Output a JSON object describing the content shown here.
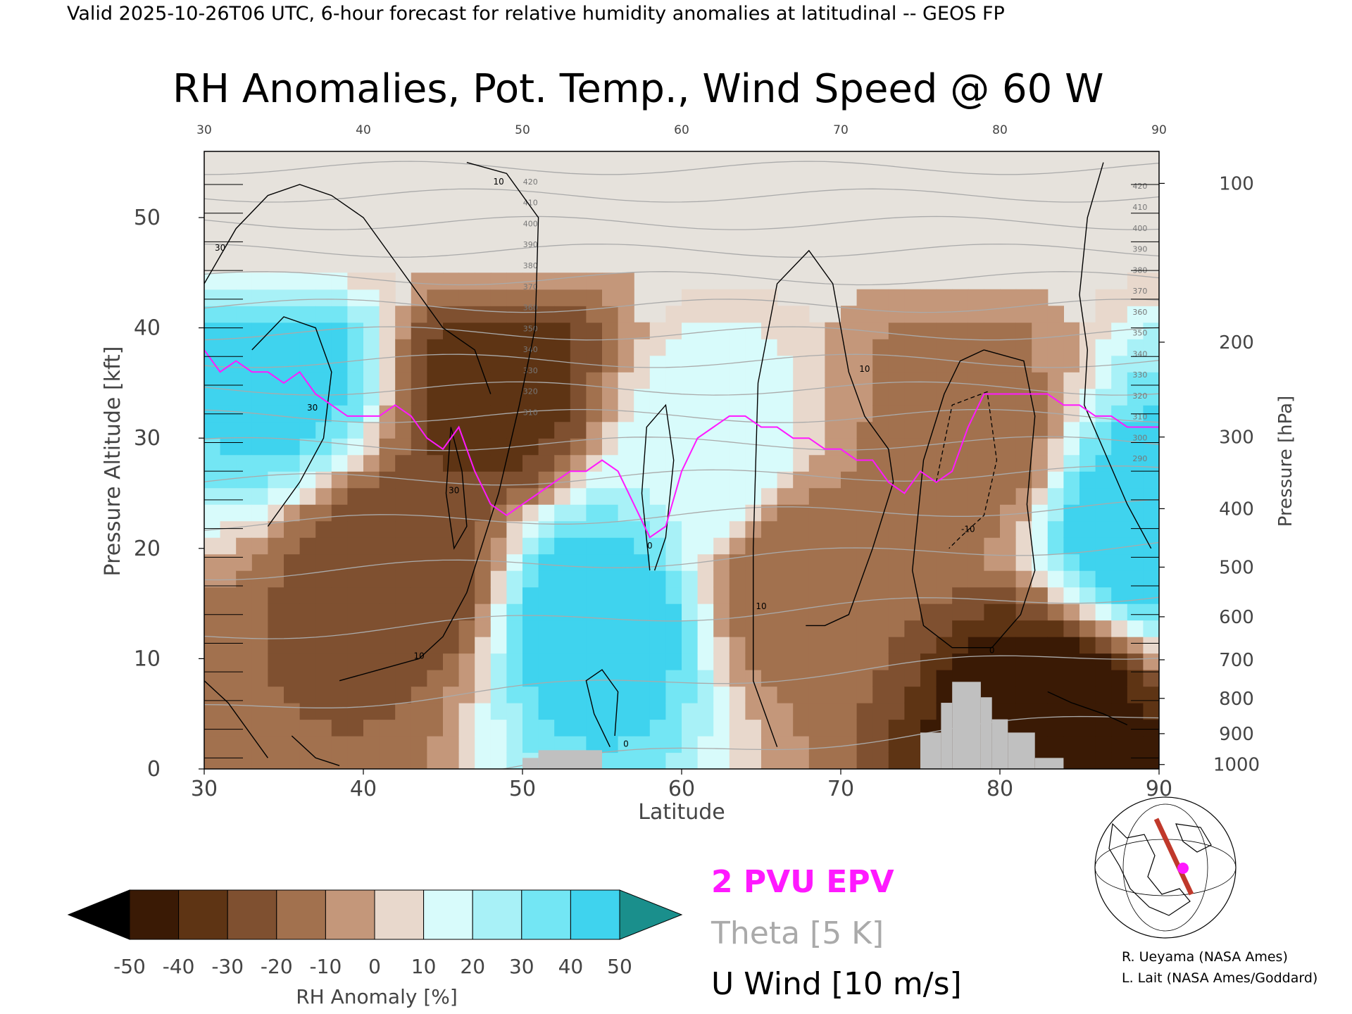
{
  "header": {
    "valid_line": "Valid 2025-10-26T06 UTC, 6-hour forecast for relative humidity anomalies at latitudinal -- GEOS FP",
    "title": "RH Anomalies, Pot. Temp., Wind Speed @ 60 W"
  },
  "chart_data": {
    "type": "heatmap",
    "title": "RH Anomalies, Pot. Temp., Wind Speed @ 60 W",
    "xlabel": "Latitude",
    "ylabel_left": "Pressure Altitude [kft]",
    "ylabel_right": "Pressure [hPa]",
    "xlim": [
      30,
      90
    ],
    "ylim": [
      0,
      56
    ],
    "x_ticks_top": [
      "30",
      "40",
      "50",
      "60",
      "70",
      "80",
      "90"
    ],
    "x_ticks_bottom": [
      "30",
      "40",
      "50",
      "60",
      "70",
      "80",
      "90"
    ],
    "y_ticks_left": [
      "0",
      "10",
      "20",
      "30",
      "40",
      "50"
    ],
    "pressure_ticks": [
      {
        "label": "100",
        "kft": 53.1
      },
      {
        "label": "200",
        "kft": 38.7
      },
      {
        "label": "300",
        "kft": 30.1
      },
      {
        "label": "400",
        "kft": 23.6
      },
      {
        "label": "500",
        "kft": 18.3
      },
      {
        "label": "600",
        "kft": 13.8
      },
      {
        "label": "700",
        "kft": 9.9
      },
      {
        "label": "800",
        "kft": 6.4
      },
      {
        "label": "900",
        "kft": 3.2
      },
      {
        "label": "1000",
        "kft": 0.4
      }
    ],
    "theta_labels": [
      "420",
      "410",
      "400",
      "390",
      "380",
      "370",
      "360",
      "350",
      "340",
      "330",
      "320",
      "310",
      "300",
      "290"
    ],
    "wind_labels": [
      "10",
      "30",
      "0",
      "-10"
    ],
    "background_fields": [
      {
        "lat": 30,
        "kft": 0,
        "rh": -20
      },
      {
        "lat": 35,
        "kft": 36,
        "rh": 45
      },
      {
        "lat": 42,
        "kft": 18,
        "rh": -30
      },
      {
        "lat": 48,
        "kft": 34,
        "rh": -35
      },
      {
        "lat": 55,
        "kft": 14,
        "rh": 50
      },
      {
        "lat": 62,
        "kft": 27,
        "rh": 20
      },
      {
        "lat": 67,
        "kft": 18,
        "rh": -20
      },
      {
        "lat": 78,
        "kft": 30,
        "rh": -15
      },
      {
        "lat": 83,
        "kft": 5,
        "rh": -50
      },
      {
        "lat": 89,
        "kft": 22,
        "rh": 50
      }
    ],
    "epv_2pvu_line": {
      "lat": [
        30,
        31,
        32,
        33,
        34,
        35,
        36,
        37,
        38,
        39,
        40,
        41,
        42,
        43,
        44,
        45,
        46,
        47,
        48,
        49,
        50,
        51,
        52,
        53,
        54,
        55,
        56,
        57,
        58,
        59,
        60,
        61,
        62,
        63,
        64,
        65,
        66,
        67,
        68,
        69,
        70,
        71,
        72,
        73,
        74,
        75,
        76,
        77,
        78,
        79,
        80,
        81,
        82,
        83,
        84,
        85,
        86,
        87,
        88,
        89,
        90
      ],
      "kft": [
        38,
        36,
        37,
        36,
        36,
        35,
        36,
        34,
        33,
        32,
        32,
        32,
        33,
        32,
        30,
        29,
        31,
        27,
        24,
        23,
        24,
        25,
        26,
        27,
        27,
        28,
        27,
        24,
        21,
        22,
        27,
        30,
        31,
        32,
        32,
        31,
        31,
        30,
        30,
        29,
        29,
        28,
        28,
        26,
        25,
        27,
        26,
        27,
        31,
        34,
        34,
        34,
        34,
        34,
        33,
        33,
        32,
        32,
        31,
        31,
        31
      ]
    },
    "terrain": [
      {
        "lat_start": 50.0,
        "lat_end": 51.0,
        "kft": 1.0
      },
      {
        "lat_start": 51.0,
        "lat_end": 55.0,
        "kft": 1.7
      },
      {
        "lat_start": 75.0,
        "lat_end": 76.3,
        "kft": 3.3
      },
      {
        "lat_start": 76.3,
        "lat_end": 77.0,
        "kft": 6.0
      },
      {
        "lat_start": 77.0,
        "lat_end": 78.8,
        "kft": 7.9
      },
      {
        "lat_start": 78.8,
        "lat_end": 79.5,
        "kft": 6.5
      },
      {
        "lat_start": 79.5,
        "lat_end": 80.5,
        "kft": 4.5
      },
      {
        "lat_start": 80.5,
        "lat_end": 82.2,
        "kft": 3.3
      },
      {
        "lat_start": 82.2,
        "lat_end": 84.0,
        "kft": 1.0
      }
    ]
  },
  "colorbar": {
    "ticks": [
      "-50",
      "-40",
      "-30",
      "-20",
      "-10",
      "0",
      "10",
      "20",
      "30",
      "40",
      "50"
    ],
    "label": "RH Anomaly [%]",
    "colors": [
      "#000000",
      "#3a1a05",
      "#5e3414",
      "#7f5030",
      "#a2714e",
      "#c4977a",
      "#e8d8cc",
      "#d8fbfb",
      "#a8f1f7",
      "#73e6f4",
      "#3fd3ee",
      "#16a7c9",
      "#1a8f8c"
    ]
  },
  "legend": {
    "epv": "2 PVU EPV",
    "theta": "Theta [5 K]",
    "wind": "U Wind [10 m/s]",
    "epv_color": "#ff19ff",
    "theta_color": "#aaaaaa",
    "wind_color": "#000000"
  },
  "credits": {
    "line1": "R. Ueyama (NASA Ames)",
    "line2": "L. Lait (NASA Ames/Goddard)"
  },
  "locator_map": {
    "section_color": "#c0392b",
    "marker_color": "#ff19ff"
  }
}
